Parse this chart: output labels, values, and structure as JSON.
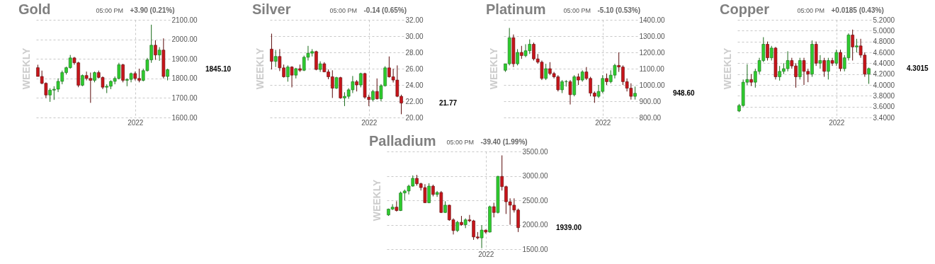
{
  "chart_data": [
    {
      "type": "candlestick",
      "title": "Gold",
      "subtitle": "05:00 PM",
      "ylabel": "WEEKLY",
      "annotations": [
        "+3.90 (0.21%)",
        "1845.10"
      ],
      "grid": true,
      "categories": [
        null,
        null,
        null,
        null,
        null,
        null,
        null,
        null,
        null,
        null,
        null,
        null,
        null,
        null,
        null,
        null,
        null,
        null,
        null,
        null,
        null,
        null,
        null,
        null,
        "2022",
        null,
        null,
        null,
        null,
        null,
        null,
        null,
        null
      ],
      "ylim": [
        1600,
        2100
      ],
      "yticks": [
        {
          "value": 1600,
          "label": "1600.00"
        },
        {
          "value": 1700,
          "label": "1700.00"
        },
        {
          "value": 1800,
          "label": "1800.00"
        },
        {
          "value": 1900,
          "label": "1900.00"
        },
        {
          "value": 2000,
          "label": "2000.00"
        },
        {
          "value": 2100,
          "label": "2100.00"
        }
      ],
      "ohlc": [
        [
          1855,
          1870,
          1810,
          1810
        ],
        [
          1810,
          1840,
          1770,
          1775
        ],
        [
          1775,
          1780,
          1700,
          1715
        ],
        [
          1715,
          1750,
          1680,
          1740
        ],
        [
          1740,
          1760,
          1690,
          1745
        ],
        [
          1745,
          1800,
          1730,
          1785
        ],
        [
          1785,
          1840,
          1770,
          1830
        ],
        [
          1830,
          1860,
          1820,
          1855
        ],
        [
          1855,
          1920,
          1850,
          1905
        ],
        [
          1905,
          1910,
          1870,
          1880
        ],
        [
          1880,
          1885,
          1755,
          1765
        ],
        [
          1765,
          1820,
          1760,
          1815
        ],
        [
          1815,
          1835,
          1790,
          1800
        ],
        [
          1800,
          1830,
          1675,
          1790
        ],
        [
          1790,
          1835,
          1780,
          1830
        ],
        [
          1830,
          1840,
          1800,
          1805
        ],
        [
          1805,
          1810,
          1745,
          1755
        ],
        [
          1755,
          1770,
          1725,
          1760
        ],
        [
          1760,
          1790,
          1745,
          1785
        ],
        [
          1785,
          1810,
          1770,
          1800
        ],
        [
          1800,
          1880,
          1795,
          1870
        ],
        [
          1870,
          1875,
          1780,
          1790
        ],
        [
          1790,
          1800,
          1760,
          1795
        ],
        [
          1795,
          1830,
          1780,
          1825
        ],
        [
          1825,
          1835,
          1790,
          1800
        ],
        [
          1800,
          1850,
          1780,
          1790
        ],
        [
          1790,
          1850,
          1785,
          1840
        ],
        [
          1840,
          1905,
          1835,
          1895
        ],
        [
          1895,
          2075,
          1880,
          1970
        ],
        [
          1970,
          1995,
          1895,
          1920
        ],
        [
          1920,
          1960,
          1890,
          1945
        ],
        [
          1945,
          2005,
          1800,
          1810
        ],
        [
          1810,
          1850,
          1790,
          1845.1
        ]
      ]
    },
    {
      "type": "candlestick",
      "title": "Silver",
      "subtitle": "05:00 PM",
      "ylabel": "WEEKLY",
      "annotations": [
        "-0.14 (0.65%)",
        "21.77"
      ],
      "grid": true,
      "categories": [
        null,
        null,
        null,
        null,
        null,
        null,
        null,
        null,
        null,
        null,
        null,
        null,
        null,
        null,
        null,
        null,
        null,
        null,
        null,
        null,
        null,
        null,
        null,
        null,
        "2022",
        null,
        null,
        null,
        null,
        null,
        null,
        null,
        null
      ],
      "ylim": [
        20,
        32
      ],
      "yticks": [
        {
          "value": 20,
          "label": "20.00"
        },
        {
          "value": 22,
          "label": "22.00"
        },
        {
          "value": 24,
          "label": "24.00"
        },
        {
          "value": 26,
          "label": "26.00"
        },
        {
          "value": 28,
          "label": "28.00"
        },
        {
          "value": 30,
          "label": "30.00"
        },
        {
          "value": 32,
          "label": "32.00"
        }
      ],
      "ohlc": [
        [
          28.4,
          30.3,
          25.9,
          26.9
        ],
        [
          26.9,
          28.3,
          26.2,
          27.5
        ],
        [
          27.5,
          28.4,
          25.7,
          26.1
        ],
        [
          26.1,
          26.5,
          24.9,
          25
        ],
        [
          25,
          26.4,
          24.4,
          26.2
        ],
        [
          26.2,
          26.3,
          23.7,
          25.2
        ],
        [
          25.2,
          26.1,
          24.8,
          26
        ],
        [
          26,
          26.5,
          25.6,
          25.8
        ],
        [
          25.8,
          27.6,
          25.7,
          27.4
        ],
        [
          27.4,
          28.8,
          27,
          27.9
        ],
        [
          27.9,
          28.4,
          27.5,
          28.1
        ],
        [
          28.1,
          28.2,
          25.8,
          25.9
        ],
        [
          25.9,
          26.9,
          25.6,
          26.6
        ],
        [
          26.6,
          26.8,
          25.6,
          25.6
        ],
        [
          25.6,
          25.9,
          24.7,
          25
        ],
        [
          25,
          25.8,
          22.4,
          23.6
        ],
        [
          23.6,
          25,
          23.5,
          24.9
        ],
        [
          24.9,
          25,
          22.3,
          22.4
        ],
        [
          22.4,
          23.1,
          21.4,
          22.6
        ],
        [
          22.6,
          23.6,
          22.3,
          23.4
        ],
        [
          23.4,
          25.1,
          23,
          24.4
        ],
        [
          24.4,
          24.6,
          23.2,
          24
        ],
        [
          24,
          25.5,
          23.7,
          25.4
        ],
        [
          25.4,
          25.5,
          22.3,
          22.5
        ],
        [
          22.5,
          22.8,
          21.4,
          22.2
        ],
        [
          22.2,
          23.4,
          22,
          23.2
        ],
        [
          23.2,
          24.8,
          22.2,
          22.3
        ],
        [
          22.3,
          24.1,
          22,
          23.9
        ],
        [
          23.9,
          26.3,
          23.8,
          26.1
        ],
        [
          26.1,
          27.5,
          24.9,
          25
        ],
        [
          25,
          26,
          24.3,
          24.6
        ],
        [
          24.6,
          26.4,
          22.5,
          22.6
        ],
        [
          22.6,
          22.8,
          20.4,
          21.77
        ]
      ]
    },
    {
      "type": "candlestick",
      "title": "Platinum",
      "subtitle": "05:00 PM",
      "ylabel": "WEEKLY",
      "annotations": [
        "-5.10 (0.53%)",
        "948.60"
      ],
      "grid": true,
      "categories": [
        null,
        null,
        null,
        null,
        null,
        null,
        null,
        null,
        null,
        null,
        null,
        null,
        null,
        null,
        null,
        null,
        null,
        null,
        null,
        null,
        null,
        null,
        null,
        null,
        "2022",
        null,
        null,
        null,
        null,
        null,
        null,
        null,
        null
      ],
      "ylim": [
        800,
        1400
      ],
      "yticks": [
        {
          "value": 800,
          "label": "800.00"
        },
        {
          "value": 900,
          "label": "900.00"
        },
        {
          "value": 1000,
          "label": "1000.00"
        },
        {
          "value": 1100,
          "label": "1100.00"
        },
        {
          "value": 1200,
          "label": "1200.00"
        },
        {
          "value": 1300,
          "label": "1300.00"
        },
        {
          "value": 1400,
          "label": "1400.00"
        }
      ],
      "ohlc": [
        [
          1090,
          1130,
          1080,
          1130
        ],
        [
          1130,
          1350,
          1120,
          1290
        ],
        [
          1290,
          1310,
          1110,
          1130
        ],
        [
          1130,
          1220,
          1120,
          1200
        ],
        [
          1200,
          1240,
          1160,
          1180
        ],
        [
          1180,
          1250,
          1170,
          1210
        ],
        [
          1210,
          1280,
          1190,
          1250
        ],
        [
          1250,
          1260,
          1150,
          1160
        ],
        [
          1160,
          1190,
          1130,
          1140
        ],
        [
          1140,
          1150,
          1030,
          1040
        ],
        [
          1040,
          1130,
          1030,
          1100
        ],
        [
          1100,
          1140,
          1060,
          1070
        ],
        [
          1070,
          1080,
          1040,
          1050
        ],
        [
          1050,
          1060,
          960,
          970
        ],
        [
          970,
          1030,
          950,
          1020
        ],
        [
          1020,
          1030,
          990,
          1020
        ],
        [
          1020,
          1030,
          880,
          940
        ],
        [
          940,
          1060,
          930,
          1050
        ],
        [
          1050,
          1070,
          1000,
          1030
        ],
        [
          1030,
          1090,
          1020,
          1080
        ],
        [
          1080,
          1110,
          1030,
          1040
        ],
        [
          1040,
          1050,
          930,
          950
        ],
        [
          950,
          960,
          890,
          930
        ],
        [
          930,
          1000,
          920,
          960
        ],
        [
          960,
          1060,
          950,
          1040
        ],
        [
          1040,
          1070,
          1000,
          1020
        ],
        [
          1020,
          1090,
          1010,
          1060
        ],
        [
          1060,
          1130,
          1040,
          1120
        ],
        [
          1120,
          1200,
          1080,
          1110
        ],
        [
          1110,
          1120,
          1000,
          1020
        ],
        [
          1020,
          1040,
          960,
          980
        ],
        [
          980,
          1010,
          910,
          930
        ],
        [
          930,
          990,
          910,
          948.6
        ]
      ]
    },
    {
      "type": "candlestick",
      "title": "Copper",
      "subtitle": "05:00 PM",
      "ylabel": "WEEKLY",
      "annotations": [
        "+0.0185 (0.43%)",
        "4.3015"
      ],
      "grid": true,
      "categories": [
        null,
        null,
        null,
        null,
        null,
        null,
        null,
        null,
        null,
        null,
        null,
        null,
        null,
        null,
        null,
        null,
        null,
        null,
        null,
        null,
        null,
        null,
        null,
        null,
        "2022",
        null,
        null,
        null,
        null,
        null,
        null,
        null,
        null
      ],
      "ylim": [
        3.4,
        5.2
      ],
      "yticks": [
        {
          "value": 3.4,
          "label": "3.4000"
        },
        {
          "value": 3.6,
          "label": "3.6000"
        },
        {
          "value": 3.8,
          "label": "3.8000"
        },
        {
          "value": 4,
          "label": "4.0000"
        },
        {
          "value": 4.2,
          "label": "4.2000"
        },
        {
          "value": 4.4,
          "label": "4.4000"
        },
        {
          "value": 4.6,
          "label": "4.6000"
        },
        {
          "value": 4.8,
          "label": "4.8000"
        },
        {
          "value": 5,
          "label": "5.0000"
        },
        {
          "value": 5.2,
          "label": "5.2000"
        }
      ],
      "ohlc": [
        [
          3.52,
          3.65,
          3.5,
          3.62
        ],
        [
          3.62,
          4.1,
          3.6,
          4.05
        ],
        [
          4.05,
          4.38,
          4,
          4.1
        ],
        [
          4.1,
          4.2,
          3.98,
          4.05
        ],
        [
          4.05,
          4.3,
          3.95,
          4.25
        ],
        [
          4.25,
          4.5,
          4.2,
          4.45
        ],
        [
          4.45,
          4.88,
          4.42,
          4.75
        ],
        [
          4.75,
          4.8,
          4.45,
          4.5
        ],
        [
          4.5,
          4.72,
          4.45,
          4.68
        ],
        [
          4.68,
          4.7,
          4.1,
          4.15
        ],
        [
          4.15,
          4.35,
          4.08,
          4.25
        ],
        [
          4.25,
          4.4,
          4.2,
          4.3
        ],
        [
          4.3,
          4.62,
          4.25,
          4.45
        ],
        [
          4.45,
          4.5,
          4.3,
          4.35
        ],
        [
          4.35,
          4.4,
          3.95,
          4.15
        ],
        [
          4.15,
          4.5,
          4.1,
          4.45
        ],
        [
          4.45,
          4.5,
          4,
          4.25
        ],
        [
          4.25,
          4.3,
          4.05,
          4.2
        ],
        [
          4.2,
          4.82,
          4.15,
          4.75
        ],
        [
          4.75,
          4.8,
          4.35,
          4.4
        ],
        [
          4.4,
          4.55,
          4.3,
          4.45
        ],
        [
          4.45,
          4.5,
          4.15,
          4.25
        ],
        [
          4.25,
          4.5,
          4.1,
          4.45
        ],
        [
          4.45,
          4.5,
          4.35,
          4.4
        ],
        [
          4.4,
          4.65,
          4.35,
          4.6
        ],
        [
          4.6,
          4.65,
          4.25,
          4.3
        ],
        [
          4.3,
          4.55,
          4.25,
          4.5
        ],
        [
          4.5,
          4.95,
          4.45,
          4.92
        ],
        [
          4.92,
          5.02,
          4.45,
          4.7
        ],
        [
          4.7,
          4.85,
          4.6,
          4.72
        ],
        [
          4.72,
          4.85,
          4.5,
          4.55
        ],
        [
          4.55,
          4.6,
          4.15,
          4.2
        ],
        [
          4.2,
          4.32,
          4.02,
          4.3015
        ]
      ]
    },
    {
      "type": "candlestick",
      "title": "Palladium",
      "subtitle": "05:00 PM",
      "ylabel": "WEEKLY",
      "annotations": [
        "-39.40 (1.99%)",
        "1939.00"
      ],
      "grid": true,
      "categories": [
        null,
        null,
        null,
        null,
        null,
        null,
        null,
        null,
        null,
        null,
        null,
        null,
        null,
        null,
        null,
        null,
        null,
        null,
        null,
        null,
        null,
        null,
        null,
        null,
        "2022",
        null,
        null,
        null,
        null,
        null,
        null,
        null,
        null
      ],
      "ylim": [
        1500,
        3500
      ],
      "yticks": [
        {
          "value": 1500,
          "label": "1500.00"
        },
        {
          "value": 2000,
          "label": "2000.00"
        },
        {
          "value": 2500,
          "label": "2500.00"
        },
        {
          "value": 3000,
          "label": "3000.00"
        },
        {
          "value": 3500,
          "label": "3500.00"
        }
      ],
      "ohlc": [
        [
          2200,
          2330,
          2180,
          2320
        ],
        [
          2320,
          2420,
          2300,
          2360
        ],
        [
          2360,
          2480,
          2270,
          2290
        ],
        [
          2290,
          2680,
          2280,
          2650
        ],
        [
          2650,
          2720,
          2500,
          2690
        ],
        [
          2690,
          2820,
          2620,
          2790
        ],
        [
          2790,
          3010,
          2780,
          2950
        ],
        [
          2950,
          3020,
          2800,
          2840
        ],
        [
          2840,
          2860,
          2700,
          2760
        ],
        [
          2760,
          2830,
          2450,
          2450
        ],
        [
          2450,
          2850,
          2440,
          2790
        ],
        [
          2790,
          2820,
          2580,
          2620
        ],
        [
          2620,
          2690,
          2570,
          2660
        ],
        [
          2660,
          2690,
          2240,
          2250
        ],
        [
          2250,
          2480,
          2240,
          2400
        ],
        [
          2400,
          2410,
          2080,
          2100
        ],
        [
          2100,
          2130,
          1800,
          1880
        ],
        [
          1880,
          2080,
          1850,
          2050
        ],
        [
          2050,
          2180,
          1980,
          2000
        ],
        [
          2000,
          2130,
          1930,
          2100
        ],
        [
          2100,
          2200,
          2050,
          2080
        ],
        [
          2080,
          2100,
          1690,
          1750
        ],
        [
          1750,
          1850,
          1700,
          1730
        ],
        [
          1730,
          1990,
          1520,
          1890
        ],
        [
          1890,
          1900,
          1820,
          1850
        ],
        [
          1850,
          2390,
          1840,
          2370
        ],
        [
          2370,
          2450,
          2150,
          2250
        ],
        [
          2250,
          3000,
          2230,
          2990
        ],
        [
          2990,
          3420,
          2700,
          2780
        ],
        [
          2780,
          2800,
          2220,
          2470
        ],
        [
          2470,
          2540,
          2000,
          2400
        ],
        [
          2400,
          2540,
          2250,
          2300
        ],
        [
          2300,
          2330,
          1850,
          1939
        ]
      ]
    }
  ]
}
